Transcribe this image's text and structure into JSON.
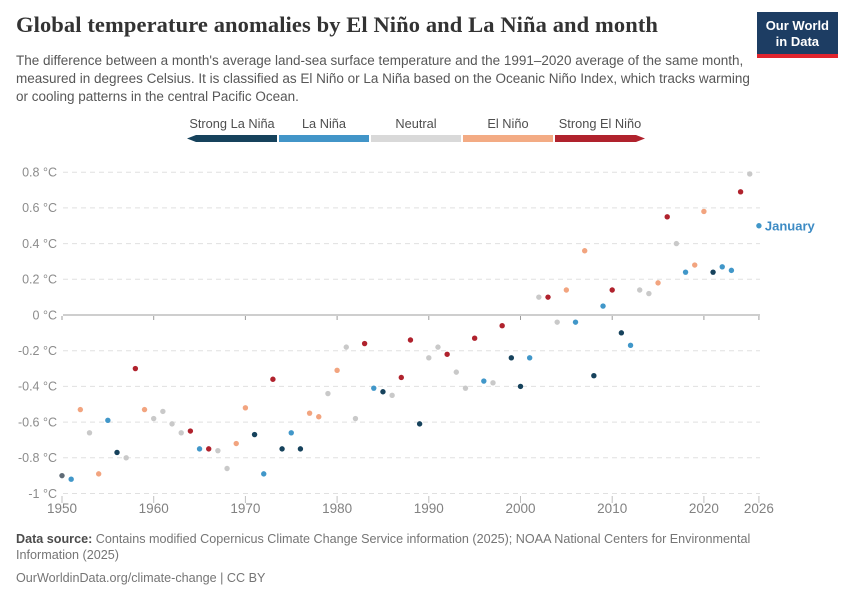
{
  "header": {
    "title": "Global temperature anomalies by El Niño and La Niña and month",
    "subtitle": "The difference between a month's average land-sea surface temperature and the 1991–2020 average of the same month, measured in degrees Celsius. It is classified as El Niño or La Niña based on the Oceanic Niño Index, which tracks warming or cooling patterns in the central Pacific Ocean.",
    "logo": {
      "line1": "Our World",
      "line2": "in Data"
    }
  },
  "legend": {
    "items": [
      {
        "label": "Strong La Niña",
        "color": "#16425c"
      },
      {
        "label": "La Niña",
        "color": "#4295c8"
      },
      {
        "label": "Neutral",
        "color": "#d9d9d9"
      },
      {
        "label": "El Niño",
        "color": "#f3ab84"
      },
      {
        "label": "Strong El Niño",
        "color": "#b0222d"
      }
    ]
  },
  "chart_data": {
    "type": "scatter",
    "series_label": "January",
    "annotation": {
      "text": "January",
      "year": 2026,
      "value": 0.5,
      "color": "#3d8bc4"
    },
    "xlim": [
      1950,
      2026
    ],
    "ylim": [
      -1.05,
      0.9
    ],
    "grid": "horizontal-dashed",
    "legend_position": "top",
    "category_colors": {
      "strong-la-nina": "#16425c",
      "la-nina": "#4197c9",
      "neutral": "#c9c9c9",
      "el-nino": "#f2a47f",
      "strong-el-nino": "#b0222d",
      "unclassified": "#5f6b76"
    },
    "y_ticks": [
      {
        "v": 0.8,
        "label": "0.8 °C"
      },
      {
        "v": 0.6,
        "label": "0.6 °C"
      },
      {
        "v": 0.4,
        "label": "0.4 °C"
      },
      {
        "v": 0.2,
        "label": "0.2 °C"
      },
      {
        "v": 0,
        "label": "0 °C"
      },
      {
        "v": -0.2,
        "label": "-0.2 °C"
      },
      {
        "v": -0.4,
        "label": "-0.4 °C"
      },
      {
        "v": -0.6,
        "label": "-0.6 °C"
      },
      {
        "v": -0.8,
        "label": "-0.8 °C"
      },
      {
        "v": -1,
        "label": "-1 °C"
      }
    ],
    "x_ticks": [
      {
        "year": 1950,
        "label": "1950"
      },
      {
        "year": 1960,
        "label": "1960"
      },
      {
        "year": 1970,
        "label": "1970"
      },
      {
        "year": 1980,
        "label": "1980"
      },
      {
        "year": 1990,
        "label": "1990"
      },
      {
        "year": 2000,
        "label": "2000"
      },
      {
        "year": 2010,
        "label": "2010"
      },
      {
        "year": 2020,
        "label": "2020"
      },
      {
        "year": 2026,
        "label": "2026"
      }
    ],
    "points": [
      {
        "year": 1950,
        "value": -0.9,
        "cat": "unclassified"
      },
      {
        "year": 1951,
        "value": -0.92,
        "cat": "la-nina"
      },
      {
        "year": 1952,
        "value": -0.53,
        "cat": "el-nino"
      },
      {
        "year": 1953,
        "value": -0.66,
        "cat": "neutral"
      },
      {
        "year": 1954,
        "value": -0.89,
        "cat": "el-nino"
      },
      {
        "year": 1955,
        "value": -0.59,
        "cat": "la-nina"
      },
      {
        "year": 1956,
        "value": -0.77,
        "cat": "strong-la-nina"
      },
      {
        "year": 1957,
        "value": -0.8,
        "cat": "neutral"
      },
      {
        "year": 1958,
        "value": -0.3,
        "cat": "strong-el-nino"
      },
      {
        "year": 1959,
        "value": -0.53,
        "cat": "el-nino"
      },
      {
        "year": 1960,
        "value": -0.58,
        "cat": "neutral"
      },
      {
        "year": 1961,
        "value": -0.54,
        "cat": "neutral"
      },
      {
        "year": 1962,
        "value": -0.61,
        "cat": "neutral"
      },
      {
        "year": 1963,
        "value": -0.66,
        "cat": "neutral"
      },
      {
        "year": 1964,
        "value": -0.65,
        "cat": "strong-el-nino"
      },
      {
        "year": 1965,
        "value": -0.75,
        "cat": "la-nina"
      },
      {
        "year": 1966,
        "value": -0.75,
        "cat": "strong-el-nino"
      },
      {
        "year": 1967,
        "value": -0.76,
        "cat": "neutral"
      },
      {
        "year": 1968,
        "value": -0.86,
        "cat": "neutral"
      },
      {
        "year": 1969,
        "value": -0.72,
        "cat": "el-nino"
      },
      {
        "year": 1970,
        "value": -0.52,
        "cat": "el-nino"
      },
      {
        "year": 1971,
        "value": -0.67,
        "cat": "strong-la-nina"
      },
      {
        "year": 1972,
        "value": -0.89,
        "cat": "la-nina"
      },
      {
        "year": 1973,
        "value": -0.36,
        "cat": "strong-el-nino"
      },
      {
        "year": 1974,
        "value": -0.75,
        "cat": "strong-la-nina"
      },
      {
        "year": 1975,
        "value": -0.66,
        "cat": "la-nina"
      },
      {
        "year": 1976,
        "value": -0.75,
        "cat": "strong-la-nina"
      },
      {
        "year": 1977,
        "value": -0.55,
        "cat": "el-nino"
      },
      {
        "year": 1978,
        "value": -0.57,
        "cat": "el-nino"
      },
      {
        "year": 1979,
        "value": -0.44,
        "cat": "neutral"
      },
      {
        "year": 1980,
        "value": -0.31,
        "cat": "el-nino"
      },
      {
        "year": 1981,
        "value": -0.18,
        "cat": "neutral"
      },
      {
        "year": 1982,
        "value": -0.58,
        "cat": "neutral"
      },
      {
        "year": 1983,
        "value": -0.16,
        "cat": "strong-el-nino"
      },
      {
        "year": 1984,
        "value": -0.41,
        "cat": "la-nina"
      },
      {
        "year": 1985,
        "value": -0.43,
        "cat": "strong-la-nina"
      },
      {
        "year": 1986,
        "value": -0.45,
        "cat": "neutral"
      },
      {
        "year": 1987,
        "value": -0.35,
        "cat": "strong-el-nino"
      },
      {
        "year": 1988,
        "value": -0.14,
        "cat": "strong-el-nino"
      },
      {
        "year": 1989,
        "value": -0.61,
        "cat": "strong-la-nina"
      },
      {
        "year": 1990,
        "value": -0.24,
        "cat": "neutral"
      },
      {
        "year": 1991,
        "value": -0.18,
        "cat": "neutral"
      },
      {
        "year": 1992,
        "value": -0.22,
        "cat": "strong-el-nino"
      },
      {
        "year": 1993,
        "value": -0.32,
        "cat": "neutral"
      },
      {
        "year": 1994,
        "value": -0.41,
        "cat": "neutral"
      },
      {
        "year": 1995,
        "value": -0.13,
        "cat": "strong-el-nino"
      },
      {
        "year": 1996,
        "value": -0.37,
        "cat": "la-nina"
      },
      {
        "year": 1997,
        "value": -0.38,
        "cat": "neutral"
      },
      {
        "year": 1998,
        "value": -0.06,
        "cat": "strong-el-nino"
      },
      {
        "year": 1999,
        "value": -0.24,
        "cat": "strong-la-nina"
      },
      {
        "year": 2000,
        "value": -0.4,
        "cat": "strong-la-nina"
      },
      {
        "year": 2001,
        "value": -0.24,
        "cat": "la-nina"
      },
      {
        "year": 2002,
        "value": 0.1,
        "cat": "neutral"
      },
      {
        "year": 2003,
        "value": 0.1,
        "cat": "strong-el-nino"
      },
      {
        "year": 2004,
        "value": -0.04,
        "cat": "neutral"
      },
      {
        "year": 2005,
        "value": 0.14,
        "cat": "el-nino"
      },
      {
        "year": 2006,
        "value": -0.04,
        "cat": "la-nina"
      },
      {
        "year": 2007,
        "value": 0.36,
        "cat": "el-nino"
      },
      {
        "year": 2008,
        "value": -0.34,
        "cat": "strong-la-nina"
      },
      {
        "year": 2009,
        "value": 0.05,
        "cat": "la-nina"
      },
      {
        "year": 2010,
        "value": 0.14,
        "cat": "strong-el-nino"
      },
      {
        "year": 2011,
        "value": -0.1,
        "cat": "strong-la-nina"
      },
      {
        "year": 2012,
        "value": -0.17,
        "cat": "la-nina"
      },
      {
        "year": 2013,
        "value": 0.14,
        "cat": "neutral"
      },
      {
        "year": 2014,
        "value": 0.12,
        "cat": "neutral"
      },
      {
        "year": 2015,
        "value": 0.18,
        "cat": "el-nino"
      },
      {
        "year": 2016,
        "value": 0.55,
        "cat": "strong-el-nino"
      },
      {
        "year": 2017,
        "value": 0.4,
        "cat": "neutral"
      },
      {
        "year": 2018,
        "value": 0.24,
        "cat": "la-nina"
      },
      {
        "year": 2019,
        "value": 0.28,
        "cat": "el-nino"
      },
      {
        "year": 2020,
        "value": 0.58,
        "cat": "el-nino"
      },
      {
        "year": 2021,
        "value": 0.24,
        "cat": "strong-la-nina"
      },
      {
        "year": 2022,
        "value": 0.27,
        "cat": "la-nina"
      },
      {
        "year": 2023,
        "value": 0.25,
        "cat": "la-nina"
      },
      {
        "year": 2024,
        "value": 0.69,
        "cat": "strong-el-nino"
      },
      {
        "year": 2025,
        "value": 0.79,
        "cat": "neutral"
      },
      {
        "year": 2026,
        "value": 0.5,
        "cat": "la-nina"
      }
    ]
  },
  "footer": {
    "source_label": "Data source:",
    "source_text": " Contains modified Copernicus Climate Change Service information (2025); NOAA National Centers for Environmental Information (2025)",
    "link_line": "OurWorldinData.org/climate-change | CC BY"
  }
}
